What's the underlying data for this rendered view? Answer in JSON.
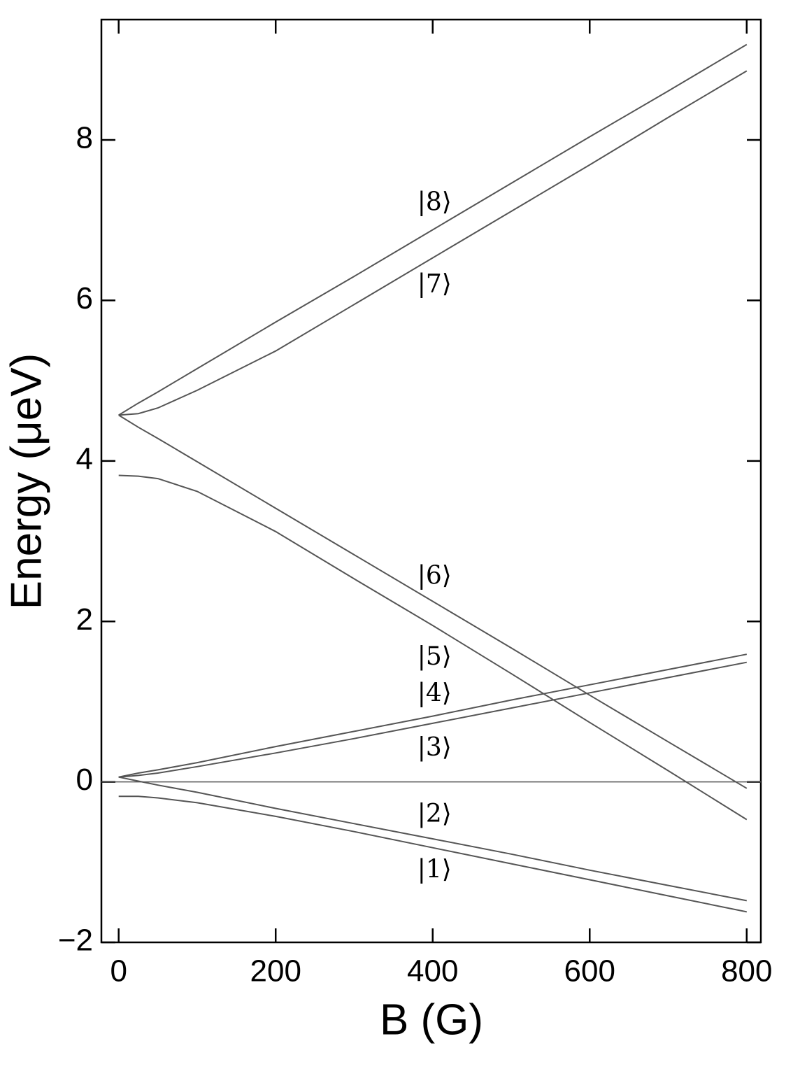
{
  "chart_data": {
    "type": "line",
    "xlabel": "B (G)",
    "ylabel": "Energy (μeV)",
    "x": [
      0,
      25,
      50,
      100,
      200,
      300,
      400,
      500,
      600,
      700,
      800
    ],
    "xlim": [
      -22,
      818
    ],
    "ylim": [
      -2,
      9.5
    ],
    "xticks": [
      0,
      200,
      400,
      600,
      800
    ],
    "yticks": [
      {
        "value": -2,
        "label": "−2"
      },
      0,
      2,
      4,
      6,
      8
    ],
    "hline": 0,
    "series": [
      {
        "name": "|1⟩",
        "color": "#555555",
        "values": [
          -0.18,
          -0.18,
          -0.2,
          -0.26,
          -0.43,
          -0.62,
          -0.82,
          -1.02,
          -1.22,
          -1.42,
          -1.62
        ]
      },
      {
        "name": "|2⟩",
        "color": "#555555",
        "values": [
          0.06,
          0.01,
          -0.04,
          -0.13,
          -0.33,
          -0.52,
          -0.71,
          -0.9,
          -1.1,
          -1.29,
          -1.48
        ]
      },
      {
        "name": "|3⟩",
        "color": "#555555",
        "values": [
          0.06,
          0.08,
          0.11,
          0.19,
          0.36,
          0.54,
          0.73,
          0.92,
          1.11,
          1.3,
          1.49
        ]
      },
      {
        "name": "|4⟩",
        "color": "#555555",
        "values": [
          0.06,
          0.11,
          0.15,
          0.24,
          0.44,
          0.63,
          0.82,
          1.02,
          1.21,
          1.4,
          1.59
        ]
      },
      {
        "name": "|5⟩",
        "color": "#555555",
        "values": [
          3.82,
          3.81,
          3.78,
          3.62,
          3.12,
          2.53,
          1.95,
          1.35,
          0.74,
          0.14,
          -0.47
        ]
      },
      {
        "name": "|6⟩",
        "color": "#555555",
        "values": [
          4.57,
          4.42,
          4.28,
          3.99,
          3.41,
          2.83,
          2.25,
          1.67,
          1.08,
          0.5,
          -0.08
        ]
      },
      {
        "name": "|7⟩",
        "color": "#555555",
        "values": [
          4.57,
          4.59,
          4.66,
          4.88,
          5.37,
          5.95,
          6.53,
          7.11,
          7.69,
          8.28,
          8.86
        ]
      },
      {
        "name": "|8⟩",
        "color": "#555555",
        "values": [
          4.57,
          4.72,
          4.86,
          5.15,
          5.73,
          6.3,
          6.88,
          7.46,
          8.04,
          8.61,
          9.19
        ]
      }
    ]
  }
}
